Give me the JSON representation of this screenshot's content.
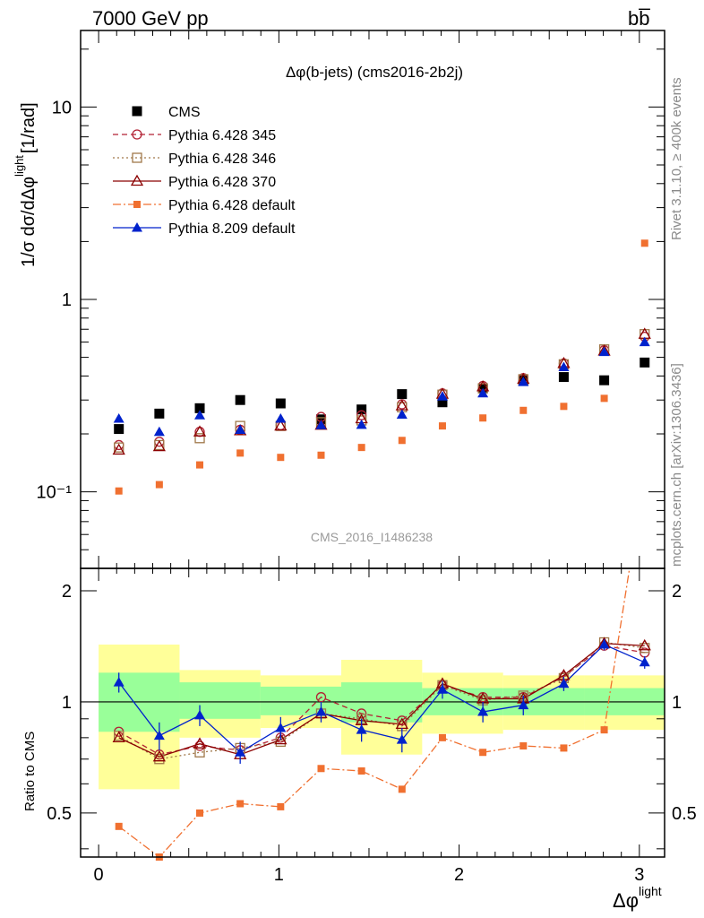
{
  "header": {
    "left_label": "7000 GeV pp",
    "right_label": "bb̅"
  },
  "side_labels": {
    "rivet": "Rivet 3.1.10, ≥ 400k events",
    "mcplots": "mcplots.cern.ch [arXiv:1306.3436]"
  },
  "chart_data": {
    "type": "scatter",
    "title": "Δφ(b-jets) (cms2016-2b2j)",
    "watermark": "CMS_2016_I1486238",
    "xlabel": "Δφ",
    "xlabel_sup": "light",
    "ylabel_main": "1/σ dσ/dΔφ",
    "ylabel_sup": "light",
    "ylabel_unit": "[1/rad]",
    "ylabel_ratio": "Ratio to CMS",
    "xlim": [
      -0.1,
      3.14
    ],
    "ylim_main": [
      0.04,
      25
    ],
    "ylim_ratio": [
      0.38,
      2.3
    ],
    "x_ticks": [
      "0",
      "1",
      "2",
      "3"
    ],
    "y_ticks_main": [
      "10",
      "1",
      "10⁻¹"
    ],
    "y_ticks_ratio": [
      "2",
      "1",
      "0.5"
    ],
    "x": [
      0.1122,
      0.3366,
      0.561,
      0.7854,
      1.0098,
      1.2342,
      1.4586,
      1.683,
      1.9074,
      2.1318,
      2.3562,
      2.5806,
      2.805,
      3.0294
    ],
    "band_edges": [
      0,
      0.449,
      0.898,
      1.346,
      1.795,
      2.244,
      2.693,
      3.142
    ],
    "band_inner": [
      [
        0.83,
        1.2
      ],
      [
        0.9,
        1.13
      ],
      [
        0.92,
        1.1
      ],
      [
        0.88,
        1.13
      ],
      [
        0.92,
        1.09
      ],
      [
        0.92,
        1.09
      ],
      [
        0.92,
        1.09
      ]
    ],
    "band_outer": [
      [
        0.58,
        1.43
      ],
      [
        0.8,
        1.22
      ],
      [
        0.85,
        1.18
      ],
      [
        0.72,
        1.3
      ],
      [
        0.82,
        1.2
      ],
      [
        0.84,
        1.18
      ],
      [
        0.84,
        1.18
      ]
    ],
    "legend": [
      "CMS",
      "Pythia 6.428 345",
      "Pythia 6.428 346",
      "Pythia 6.428 370",
      "Pythia 6.428 default",
      "Pythia 8.209 default"
    ],
    "series": [
      {
        "name": "CMS",
        "marker": "square",
        "color": "#000000",
        "values": [
          0.212,
          0.255,
          0.272,
          0.3,
          0.288,
          0.238,
          0.268,
          0.322,
          0.292,
          0.345,
          0.38,
          0.395,
          0.38,
          0.47
        ]
      },
      {
        "name": "Pythia 6.428 345",
        "marker": "circle",
        "color": "#b22234",
        "dash": "6,4",
        "values": [
          0.175,
          0.182,
          0.205,
          0.21,
          0.222,
          0.245,
          0.25,
          0.285,
          0.325,
          0.355,
          0.39,
          0.465,
          0.545,
          0.64
        ],
        "ratio": [
          0.83,
          0.72,
          0.76,
          0.74,
          0.8,
          1.03,
          0.93,
          0.89,
          1.11,
          1.03,
          1.03,
          1.17,
          1.42,
          1.36
        ]
      },
      {
        "name": "Pythia 6.428 346",
        "marker": "square-open",
        "color": "#a0784a",
        "dash": "2,3",
        "values": [
          0.17,
          0.175,
          0.19,
          0.22,
          0.22,
          0.23,
          0.235,
          0.275,
          0.32,
          0.345,
          0.385,
          0.46,
          0.55,
          0.66
        ],
        "ratio": [
          0.81,
          0.7,
          0.73,
          0.75,
          0.78,
          0.93,
          0.9,
          0.86,
          1.11,
          1.01,
          1.04,
          1.16,
          1.45,
          1.4
        ]
      },
      {
        "name": "Pythia 6.428 370",
        "marker": "triangle-open",
        "color": "#8b0000",
        "dash": "",
        "values": [
          0.165,
          0.172,
          0.205,
          0.208,
          0.22,
          0.222,
          0.24,
          0.28,
          0.322,
          0.352,
          0.385,
          0.465,
          0.54,
          0.66
        ],
        "ratio": [
          0.8,
          0.71,
          0.77,
          0.72,
          0.79,
          0.93,
          0.89,
          0.87,
          1.12,
          1.02,
          1.02,
          1.18,
          1.44,
          1.42
        ]
      },
      {
        "name": "Pythia 6.428 default",
        "marker": "square-small",
        "color": "#f07030",
        "dash": "9,3,2,3",
        "values": [
          0.101,
          0.109,
          0.138,
          0.159,
          0.151,
          0.155,
          0.17,
          0.185,
          0.22,
          0.242,
          0.265,
          0.278,
          0.306,
          1.96
        ],
        "ratio": [
          0.46,
          0.38,
          0.5,
          0.53,
          0.52,
          0.66,
          0.65,
          0.58,
          0.8,
          0.73,
          0.76,
          0.75,
          0.84,
          4.2
        ]
      },
      {
        "name": "Pythia 8.209 default",
        "marker": "triangle",
        "color": "#0022cc",
        "dash": "",
        "values": [
          0.24,
          0.205,
          0.25,
          0.21,
          0.24,
          0.222,
          0.223,
          0.252,
          0.313,
          0.325,
          0.372,
          0.445,
          0.533,
          0.6
        ],
        "ratio": [
          1.13,
          0.81,
          0.92,
          0.73,
          0.85,
          0.94,
          0.84,
          0.79,
          1.08,
          0.94,
          0.98,
          1.12,
          1.43,
          1.28
        ],
        "ratio_err": [
          0.07,
          0.07,
          0.06,
          0.05,
          0.06,
          0.06,
          0.06,
          0.06,
          0.06,
          0.06,
          0.06,
          0.05,
          0.05,
          0.05
        ]
      }
    ]
  }
}
